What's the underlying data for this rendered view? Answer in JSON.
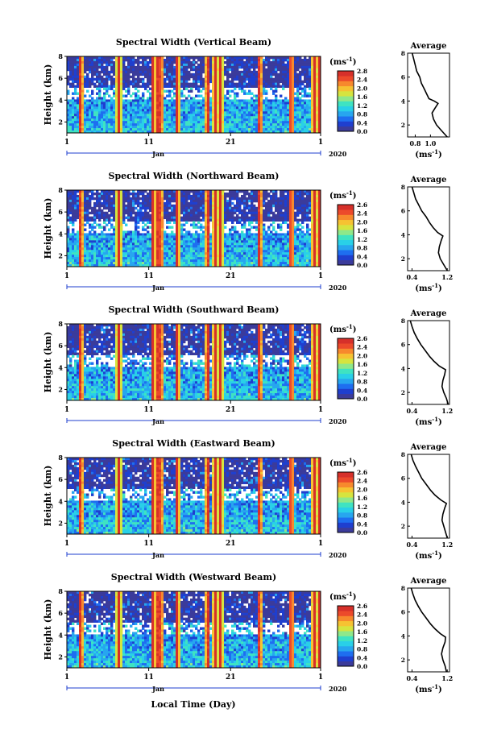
{
  "figure": {
    "colorbar_unit": "(ms",
    "colorbar_unit_sup": "-1",
    "colorbar_unit_close": ")",
    "avg_title": "Average",
    "avg_xlabel": "(ms",
    "avg_xlabel_sup": "-1",
    "avg_xlabel_close": ")",
    "ylabel": "Height (km)",
    "month_label": "Jan",
    "year_label": "2020",
    "bottom_xlabel": "Local Time (Day)"
  },
  "colormap": [
    "#3b3b9b",
    "#1f3fcf",
    "#1e6ef0",
    "#27a6ef",
    "#29d0e8",
    "#3fe3c2",
    "#8fe88a",
    "#d6e43f",
    "#f6c232",
    "#f7892d",
    "#ec4a2b",
    "#d6302a"
  ],
  "colorbar": {
    "ticks": [
      "2.6",
      "2.4",
      "2.0",
      "1.6",
      "1.2",
      "0.8",
      "0.4",
      "0.0"
    ],
    "ticks_vertical_beam": [
      "2.8",
      "2.4",
      "2.0",
      "1.6",
      "1.2",
      "0.8",
      "0.4",
      "0.0"
    ],
    "range": [
      0.0,
      2.8
    ]
  },
  "chart_data": [
    {
      "type": "heatmap",
      "title": "Spectral Width (Vertical Beam)",
      "ylabel": "Height (km)",
      "xlabel": "Jan",
      "year": "2020",
      "x_ticks": [
        "1",
        "11",
        "21",
        "1"
      ],
      "y_ticks": [
        "2",
        "4",
        "6",
        "8"
      ],
      "ylim": [
        1,
        8
      ],
      "colorbar_ticks": [
        "2.8",
        "2.4",
        "2.0",
        "1.6",
        "1.2",
        "0.8",
        "0.4",
        "0.0"
      ],
      "colorbar_label": "(ms-1)",
      "average_profile": {
        "title": "Average",
        "xlabel": "(ms-1)",
        "x_ticks": [
          "0.8",
          "1.0"
        ],
        "xlim": [
          0.7,
          1.25
        ],
        "y_ticks": [
          "2",
          "4",
          "6",
          "8"
        ],
        "ylim": [
          1,
          8
        ],
        "height": [
          1.0,
          1.5,
          2.0,
          2.5,
          3.0,
          3.4,
          3.8,
          4.0,
          4.2,
          4.6,
          5.0,
          5.5,
          6.0,
          6.5,
          7.0,
          7.5,
          8.0
        ],
        "value": [
          1.22,
          1.15,
          1.08,
          1.04,
          1.02,
          1.06,
          1.1,
          1.05,
          0.98,
          0.95,
          0.92,
          0.88,
          0.86,
          0.82,
          0.8,
          0.78,
          0.76
        ]
      }
    },
    {
      "type": "heatmap",
      "title": "Spectral Width (Northward Beam)",
      "ylabel": "Height (km)",
      "xlabel": "Jan",
      "year": "2020",
      "x_ticks": [
        "1",
        "11",
        "21",
        "1"
      ],
      "y_ticks": [
        "2",
        "4",
        "6",
        "8"
      ],
      "ylim": [
        1,
        8
      ],
      "colorbar_ticks": [
        "2.6",
        "2.4",
        "2.0",
        "1.6",
        "1.2",
        "0.8",
        "0.4",
        "0.0"
      ],
      "colorbar_label": "(ms-1)",
      "average_profile": {
        "title": "Average",
        "xlabel": "(ms-1)",
        "x_ticks": [
          "0.4",
          "1.2"
        ],
        "xlim": [
          0.3,
          1.25
        ],
        "y_ticks": [
          "2",
          "4",
          "6",
          "8"
        ],
        "ylim": [
          1,
          8
        ],
        "height": [
          1.0,
          1.5,
          2.0,
          2.5,
          3.0,
          3.5,
          3.9,
          4.2,
          4.6,
          5.0,
          5.5,
          6.0,
          6.5,
          7.0,
          7.5,
          8.0
        ],
        "value": [
          1.2,
          1.12,
          1.04,
          1.0,
          1.02,
          1.06,
          1.1,
          0.98,
          0.88,
          0.8,
          0.72,
          0.62,
          0.55,
          0.48,
          0.44,
          0.4
        ]
      }
    },
    {
      "type": "heatmap",
      "title": "Spectral Width (Southward Beam)",
      "ylabel": "Height (km)",
      "xlabel": "Jan",
      "year": "2020",
      "x_ticks": [
        "1",
        "11",
        "21",
        "1"
      ],
      "y_ticks": [
        "2",
        "4",
        "6",
        "8"
      ],
      "ylim": [
        1,
        8
      ],
      "colorbar_ticks": [
        "2.6",
        "2.4",
        "2.0",
        "1.6",
        "1.2",
        "0.8",
        "0.4",
        "0.0"
      ],
      "colorbar_label": "(ms-1)",
      "average_profile": {
        "title": "Average",
        "xlabel": "(ms-1)",
        "x_ticks": [
          "0.4",
          "1.2"
        ],
        "xlim": [
          0.3,
          1.25
        ],
        "y_ticks": [
          "2",
          "4",
          "6",
          "8"
        ],
        "ylim": [
          1,
          8
        ],
        "height": [
          1.0,
          1.5,
          2.0,
          2.5,
          3.0,
          3.5,
          3.9,
          4.2,
          4.6,
          5.0,
          5.5,
          6.0,
          6.5,
          7.0,
          7.5,
          8.0
        ],
        "value": [
          1.22,
          1.18,
          1.12,
          1.08,
          1.1,
          1.14,
          1.16,
          1.02,
          0.9,
          0.8,
          0.7,
          0.6,
          0.52,
          0.45,
          0.4,
          0.36
        ]
      }
    },
    {
      "type": "heatmap",
      "title": "Spectral Width (Eastward Beam)",
      "ylabel": "Height (km)",
      "xlabel": "Jan",
      "year": "2020",
      "x_ticks": [
        "1",
        "11",
        "21",
        "1"
      ],
      "y_ticks": [
        "2",
        "4",
        "6",
        "8"
      ],
      "ylim": [
        1,
        8
      ],
      "colorbar_ticks": [
        "2.6",
        "2.4",
        "2.0",
        "1.6",
        "1.2",
        "0.8",
        "0.4",
        "0.0"
      ],
      "colorbar_label": "(ms-1)",
      "average_profile": {
        "title": "Average",
        "xlabel": "(ms-1)",
        "x_ticks": [
          "0.4",
          "1.2"
        ],
        "xlim": [
          0.3,
          1.25
        ],
        "y_ticks": [
          "2",
          "4",
          "6",
          "8"
        ],
        "ylim": [
          1,
          8
        ],
        "height": [
          1.0,
          1.5,
          2.0,
          2.5,
          3.0,
          3.5,
          3.9,
          4.2,
          4.6,
          5.0,
          5.5,
          6.0,
          6.5,
          7.0,
          7.5,
          8.0
        ],
        "value": [
          1.2,
          1.16,
          1.12,
          1.08,
          1.1,
          1.14,
          1.18,
          1.05,
          0.92,
          0.82,
          0.72,
          0.62,
          0.55,
          0.48,
          0.42,
          0.38
        ]
      }
    },
    {
      "type": "heatmap",
      "title": "Spectral Width (Westward Beam)",
      "ylabel": "Height (km)",
      "xlabel": "Jan",
      "year": "2020",
      "x_ticks": [
        "1",
        "11",
        "21",
        "1"
      ],
      "y_ticks": [
        "2",
        "4",
        "6",
        "8"
      ],
      "ylim": [
        1,
        8
      ],
      "colorbar_ticks": [
        "2.6",
        "2.4",
        "2.0",
        "1.6",
        "1.2",
        "0.8",
        "0.4",
        "0.0"
      ],
      "colorbar_label": "(ms-1)",
      "average_profile": {
        "title": "Average",
        "xlabel": "(ms-1)",
        "x_ticks": [
          "0.4",
          "1.2"
        ],
        "xlim": [
          0.3,
          1.25
        ],
        "y_ticks": [
          "2",
          "4",
          "6",
          "8"
        ],
        "ylim": [
          1,
          8
        ],
        "height": [
          1.0,
          1.5,
          2.0,
          2.5,
          3.0,
          3.5,
          3.9,
          4.2,
          4.6,
          5.0,
          5.5,
          6.0,
          6.5,
          7.0,
          7.5,
          8.0
        ],
        "value": [
          1.18,
          1.15,
          1.1,
          1.07,
          1.1,
          1.15,
          1.16,
          1.04,
          0.92,
          0.82,
          0.72,
          0.62,
          0.54,
          0.47,
          0.42,
          0.38
        ]
      }
    }
  ]
}
